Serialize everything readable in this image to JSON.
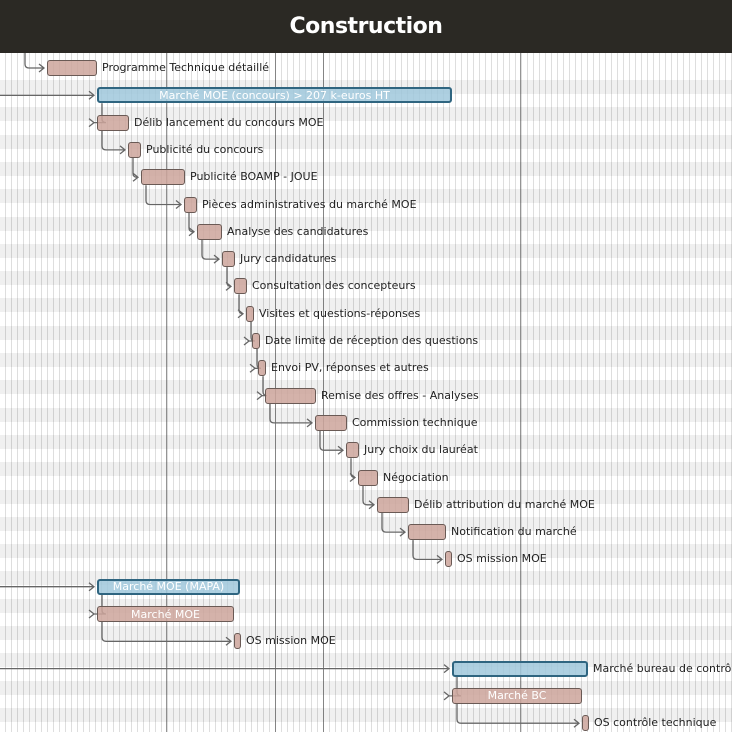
{
  "title": "Construction",
  "tasks": [
    {
      "name": "Programme Technique détaillé",
      "type": "task",
      "start": 47,
      "end": 97,
      "inside": false,
      "from": "prev"
    },
    {
      "name": "Marché MOE (concours) > 207 k-euros HT",
      "type": "summary",
      "start": 97,
      "end": 452,
      "inside": true,
      "from": "edge"
    },
    {
      "name": "Délib lancement du concours MOE",
      "type": "task",
      "start": 97,
      "end": 129,
      "inside": false,
      "from": "prev"
    },
    {
      "name": "Publicité du concours",
      "type": "task",
      "start": 128,
      "end": 141,
      "inside": false,
      "from": "prev"
    },
    {
      "name": "Publicité BOAMP - JOUE",
      "type": "task",
      "start": 141,
      "end": 185,
      "inside": false,
      "from": "prev"
    },
    {
      "name": "Pièces administratives du marché MOE",
      "type": "task",
      "start": 184,
      "end": 197,
      "inside": false,
      "from": "prev"
    },
    {
      "name": "Analyse des candidatures",
      "type": "task",
      "start": 197,
      "end": 222,
      "inside": false,
      "from": "prev"
    },
    {
      "name": "Jury candidatures",
      "type": "task",
      "start": 222,
      "end": 235,
      "inside": false,
      "from": "prev"
    },
    {
      "name": "Consultation des concepteurs",
      "type": "task",
      "start": 234,
      "end": 247,
      "inside": false,
      "from": "prev"
    },
    {
      "name": "Visites et questions-réponses",
      "type": "task",
      "start": 246,
      "end": 254,
      "inside": false,
      "from": "prev"
    },
    {
      "name": "Date limite de réception des questions",
      "type": "task",
      "start": 252,
      "end": 260,
      "inside": false,
      "from": "prev"
    },
    {
      "name": "Envoi PV, réponses et autres",
      "type": "task",
      "start": 258,
      "end": 266,
      "inside": false,
      "from": "prev"
    },
    {
      "name": "Remise des offres - Analyses",
      "type": "task",
      "start": 265,
      "end": 316,
      "inside": false,
      "from": "prev"
    },
    {
      "name": "Commission technique",
      "type": "task",
      "start": 315,
      "end": 347,
      "inside": false,
      "from": "prev"
    },
    {
      "name": "Jury choix du lauréat",
      "type": "task",
      "start": 346,
      "end": 359,
      "inside": false,
      "from": "prev"
    },
    {
      "name": "Négociation",
      "type": "task",
      "start": 358,
      "end": 378,
      "inside": false,
      "from": "prev"
    },
    {
      "name": "Délib attribution du marché MOE",
      "type": "task",
      "start": 377,
      "end": 409,
      "inside": false,
      "from": "prev"
    },
    {
      "name": "Notification du marché",
      "type": "task",
      "start": 408,
      "end": 446,
      "inside": false,
      "from": "prev"
    },
    {
      "name": "OS mission MOE",
      "type": "task",
      "start": 445,
      "end": 452,
      "inside": false,
      "from": "prev"
    },
    {
      "name": "Marché MOE (MAPA)",
      "type": "summary",
      "start": 97,
      "end": 240,
      "inside": true,
      "from": "edge"
    },
    {
      "name": "Marché MOE",
      "type": "task",
      "start": 97,
      "end": 234,
      "inside": true,
      "from": "prev"
    },
    {
      "name": "OS mission MOE",
      "type": "task",
      "start": 234,
      "end": 241,
      "inside": false,
      "from": "prev"
    },
    {
      "name": "Marché bureau de contrôle",
      "type": "summary",
      "start": 452,
      "end": 588,
      "inside": false,
      "from": "edge"
    },
    {
      "name": "Marché BC",
      "type": "task",
      "start": 452,
      "end": 582,
      "inside": true,
      "from": "prev"
    },
    {
      "name": "OS contrôle technique",
      "type": "task",
      "start": 582,
      "end": 589,
      "inside": false,
      "from": "prev"
    }
  ]
}
